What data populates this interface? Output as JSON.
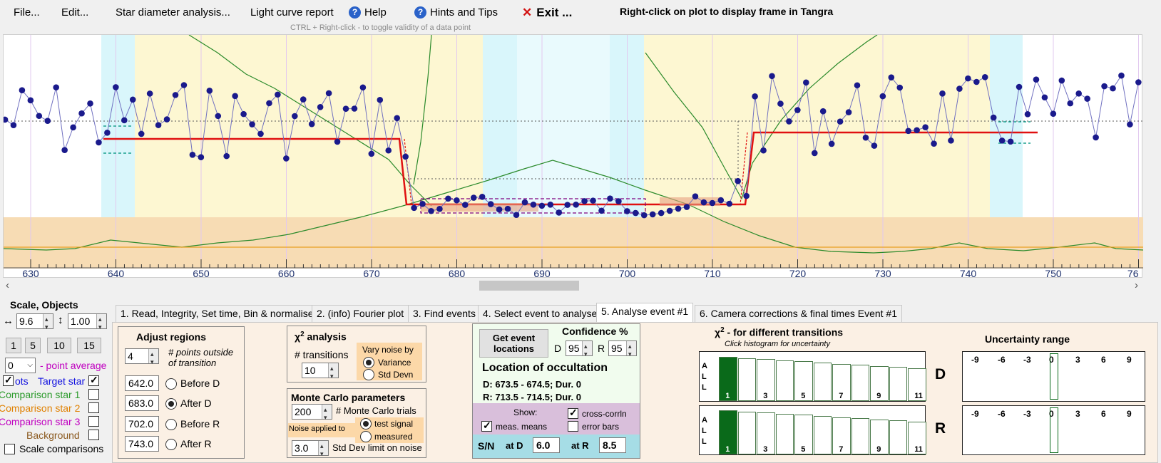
{
  "menu": {
    "file": "File...",
    "edit": "Edit...",
    "star_diameter": "Star diameter analysis...",
    "light_curve": "Light curve report",
    "help": "Help",
    "hints": "Hints and Tips",
    "exit": "Exit ...",
    "right_click_note": "Right-click on plot to display frame in Tangra",
    "ctrl_hint": "CTRL + Right-click  -  to toggle validity of a data point"
  },
  "plot": {
    "x_ticks": [
      "630",
      "640",
      "650",
      "660",
      "670",
      "680",
      "690",
      "700",
      "710",
      "720",
      "730",
      "740",
      "750",
      "76"
    ],
    "colors": {
      "data": "#1a1a8c",
      "model": "#e01010",
      "comparison": "#2b8a2b",
      "yellow_band": "#fdf7d2",
      "cyan_band": "#d9f6fb",
      "background_band": "#f7dcb4"
    }
  },
  "left_panel": {
    "title": "Scale, Objects",
    "scale_x": "9.6",
    "scale_y": "1.00",
    "avg_buttons": [
      "1",
      "5",
      "10",
      "15"
    ],
    "point_avg_value": "0",
    "point_avg_label": "- point average",
    "dots_label": "ots",
    "target_label": "Target star",
    "comp1_label": "Comparison star 1",
    "comp2_label": "Comparison star 2",
    "comp3_label": "Comparison star 3",
    "background_label": "Background",
    "scale_comparisons_label": "Scale comparisons",
    "colors": {
      "target": "#1010e0",
      "comp1": "#2b9a2b",
      "comp2": "#e08000",
      "comp3": "#c000c0",
      "background": "#8b5a20"
    }
  },
  "tabs": [
    "1.  Read, Integrity, Set time, Bin & normalise",
    "2. (info)  Fourier plot",
    "3. Find events",
    "4. Select event to analyse",
    "5. Analyse event #1",
    "6. Camera corrections & final times Event #1"
  ],
  "adjust": {
    "title": "Adjust regions",
    "points_outside_value": "4",
    "points_outside_label": "# points outside of transition",
    "before_d_value": "642.0",
    "before_d_label": "Before D",
    "after_d_value": "683.0",
    "after_d_label": "After D",
    "before_r_value": "702.0",
    "before_r_label": "Before R",
    "after_r_value": "743.0",
    "after_r_label": "After R"
  },
  "chi2": {
    "title": "analysis",
    "chi": "χ",
    "sup": "2",
    "transitions_label": "# transitions",
    "transitions_value": "10",
    "vary_label": "Vary noise by",
    "variance_label": "Variance",
    "std_devn_label": "Std Devn"
  },
  "monte_carlo": {
    "title": "Monte Carlo parameters",
    "trials_value": "200",
    "trials_label": "# Monte Carlo trials",
    "noise_applied_label": "Noise applied to",
    "test_signal_label": "test signal",
    "measured_label": "measured",
    "std_limit_value": "3.0",
    "std_limit_label": "Std Dev limit on noise"
  },
  "event_locations": {
    "button_label_1": "Get event",
    "button_label_2": "locations",
    "confidence_title": "Confidence %",
    "d_label": "D",
    "d_value": "95",
    "r_label": "R",
    "r_value": "95",
    "location_title": "Location of occultation",
    "d_line": "D: 673.5 - 674.5; Dur. 0",
    "r_line": "R: 713.5 - 714.5; Dur. 0",
    "show_label": "Show:",
    "cross_corrn_label": "cross-corrln",
    "meas_means_label": "meas. means",
    "error_bars_label": "error bars",
    "sn_label": "S/N",
    "at_d_label": "at D",
    "at_d_value": "6.0",
    "at_r_label": "at R",
    "at_r_value": "8.5"
  },
  "transitions_hist": {
    "title": "- for different transitions",
    "chi": "χ",
    "sup": "2",
    "subtitle": "Click histogram for uncertainty",
    "all_label": [
      "A",
      "L",
      "L"
    ],
    "ticks": [
      "1",
      "3",
      "5",
      "7",
      "9",
      "11"
    ],
    "d_label": "D",
    "r_label": "R",
    "fill_color": "#0a6a1a"
  },
  "uncertainty": {
    "title": "Uncertainty range",
    "ticks": [
      "-9",
      "-6",
      "-3",
      "0",
      "3",
      "6",
      "9"
    ]
  }
}
